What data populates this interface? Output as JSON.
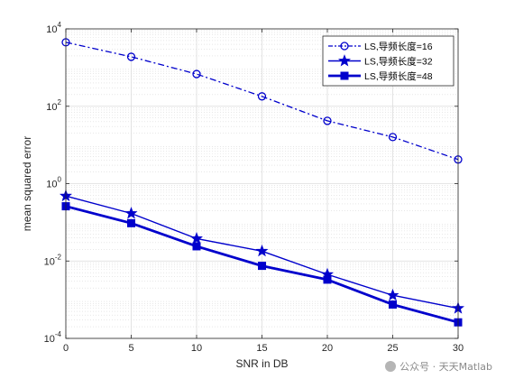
{
  "chart_data": {
    "type": "line",
    "xlabel": "SNR in DB",
    "ylabel": "mean squared error",
    "x": [
      0,
      5,
      10,
      15,
      20,
      25,
      30
    ],
    "xlim": [
      0,
      30
    ],
    "xticks": [
      "0",
      "5",
      "10",
      "15",
      "20",
      "25",
      "30"
    ],
    "ylim": [
      0.0001,
      10000
    ],
    "yscale": "log",
    "yticks": [
      {
        "base": "10",
        "exp": "-4",
        "value": 0.0001
      },
      {
        "base": "10",
        "exp": "-2",
        "value": 0.01
      },
      {
        "base": "10",
        "exp": "0",
        "value": 1
      },
      {
        "base": "10",
        "exp": "2",
        "value": 100
      },
      {
        "base": "10",
        "exp": "4",
        "value": 10000
      }
    ],
    "grid": true,
    "legend_position": "top-right",
    "series": [
      {
        "name": "LS,导频长度=16",
        "marker": "circle",
        "line": "dash-dot",
        "values": [
          4500,
          1900,
          680,
          180,
          42,
          16,
          4.2
        ]
      },
      {
        "name": "LS,导频长度=32",
        "marker": "star",
        "line": "solid",
        "values": [
          0.48,
          0.17,
          0.038,
          0.018,
          0.0045,
          0.0013,
          0.0006
        ]
      },
      {
        "name": "LS,导频长度=48",
        "marker": "square",
        "line": "solid-thick",
        "values": [
          0.26,
          0.095,
          0.024,
          0.0075,
          0.0033,
          0.00075,
          0.00026
        ]
      }
    ],
    "color": "#0000cc"
  },
  "watermark": "公众号 · 天天Matlab"
}
